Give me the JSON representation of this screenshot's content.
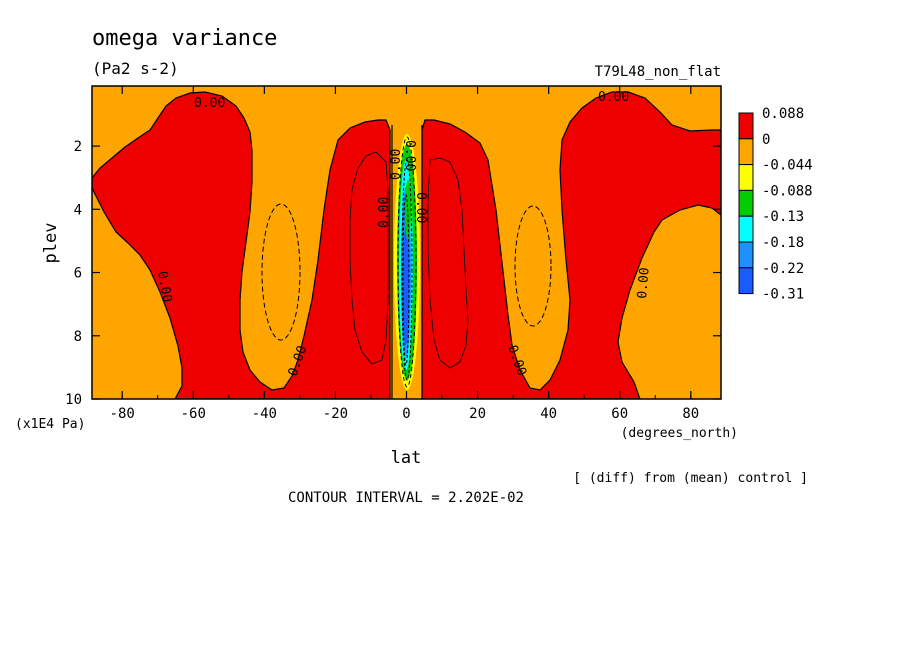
{
  "chart_data": {
    "type": "heatmap",
    "title": "omega variance",
    "units": "(Pa2 s-2)",
    "run_label": "T79L48_non_flat",
    "xlabel": "lat",
    "x_unit": "(degrees_north)",
    "ylabel": "plev",
    "y_unit": "(x1E4 Pa)",
    "x_ticks": [
      "-80",
      "-60",
      "-40",
      "-20",
      "0",
      "20",
      "40",
      "60",
      "80"
    ],
    "y_ticks": [
      "2",
      "4",
      "6",
      "8",
      "10"
    ],
    "xlim": [
      -88.5,
      88.5
    ],
    "ylim": [
      10,
      0.1
    ],
    "contour_interval": "CONTOUR INTERVAL = 2.202E-02",
    "note": "[ (diff) from (mean) control ]",
    "contour_labels": [
      "0.00",
      "0.00",
      "0.00",
      "0.00",
      "0.00",
      "0.00",
      "0.00",
      "0.00",
      "0.00",
      "0.00"
    ],
    "legend": {
      "labels": [
        "0.088",
        "0",
        "-0.044",
        "-0.088",
        "-0.13",
        "-0.18",
        "-0.22",
        "-0.31"
      ],
      "colors": [
        "#ee0000",
        "#ffa500",
        "#ffff00",
        "#00cc00",
        "#00ffff",
        "#1e90ff",
        "#1a5cff"
      ]
    },
    "colors": {
      "positive": "#ee0000",
      "zero_band": "#ffa500",
      "level_neg044": "#ffff00",
      "level_neg088": "#00cc00",
      "level_neg13": "#00ffff",
      "level_neg18": "#1e90ff",
      "level_neg22": "#1a5cff"
    }
  }
}
